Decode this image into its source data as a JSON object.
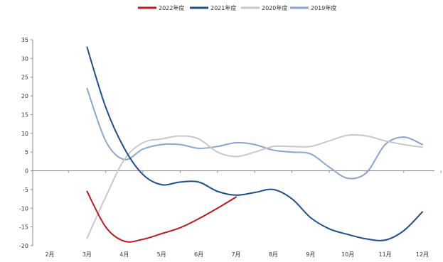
{
  "chart_data": {
    "type": "line",
    "title": "",
    "xlabel": "",
    "ylabel": "",
    "categories": [
      "2月",
      "3月",
      "4月",
      "5月",
      "6月",
      "7月",
      "8月",
      "9月",
      "10月",
      "11月",
      "12月"
    ],
    "ylim": [
      -20,
      35
    ],
    "yticks": [
      35,
      30,
      25,
      20,
      15,
      10,
      5,
      0,
      -5,
      -10,
      -15,
      -20
    ],
    "grid": false,
    "legend_position": "top-center",
    "series": [
      {
        "name": "2022年度",
        "color": "#c0191f",
        "points": [
          [
            3,
            -5.5
          ],
          [
            3.5,
            -15
          ],
          [
            4,
            -18.8
          ],
          [
            4.5,
            -18.3
          ],
          [
            5,
            -16.8
          ],
          [
            5.5,
            -15.2
          ],
          [
            6,
            -12.8
          ],
          [
            6.5,
            -10
          ],
          [
            7,
            -7
          ]
        ]
      },
      {
        "name": "2021年度",
        "color": "#1f4e8c",
        "points": [
          [
            3,
            33
          ],
          [
            3.5,
            17
          ],
          [
            4,
            6
          ],
          [
            4.5,
            -1
          ],
          [
            5,
            -3.7
          ],
          [
            5.5,
            -3
          ],
          [
            6,
            -3
          ],
          [
            6.5,
            -5.5
          ],
          [
            7,
            -6.5
          ],
          [
            7.5,
            -5.8
          ],
          [
            8,
            -5
          ],
          [
            8.5,
            -7.5
          ],
          [
            9,
            -12.5
          ],
          [
            9.5,
            -15.5
          ],
          [
            10,
            -17
          ],
          [
            10.5,
            -18.2
          ],
          [
            11,
            -18.5
          ],
          [
            11.5,
            -16
          ],
          [
            12,
            -11
          ]
        ]
      },
      {
        "name": "2020年度",
        "color": "#c8c8c8",
        "points": [
          [
            3,
            -18
          ],
          [
            3.5,
            -7
          ],
          [
            4,
            3
          ],
          [
            4.5,
            7.5
          ],
          [
            5,
            8.5
          ],
          [
            5.5,
            9.3
          ],
          [
            6,
            8.5
          ],
          [
            6.5,
            5
          ],
          [
            7,
            3.8
          ],
          [
            7.5,
            5
          ],
          [
            8,
            6.5
          ],
          [
            8.5,
            6.5
          ],
          [
            9,
            6.5
          ],
          [
            9.5,
            8
          ],
          [
            10,
            9.5
          ],
          [
            10.5,
            9.3
          ],
          [
            11,
            8
          ],
          [
            11.5,
            7
          ],
          [
            12,
            6.3
          ]
        ]
      },
      {
        "name": "2019年度",
        "color": "#8aa5cf",
        "points": [
          [
            3,
            22
          ],
          [
            3.5,
            8
          ],
          [
            4,
            3
          ],
          [
            4.5,
            5.8
          ],
          [
            5,
            7
          ],
          [
            5.5,
            7
          ],
          [
            6,
            6
          ],
          [
            6.5,
            6.5
          ],
          [
            7,
            7.5
          ],
          [
            7.5,
            7
          ],
          [
            8,
            5.5
          ],
          [
            8.5,
            5
          ],
          [
            9,
            4.5
          ],
          [
            9.5,
            1
          ],
          [
            10,
            -2
          ],
          [
            10.5,
            -0.5
          ],
          [
            11,
            7
          ],
          [
            11.5,
            9
          ],
          [
            12,
            7
          ]
        ]
      }
    ]
  }
}
